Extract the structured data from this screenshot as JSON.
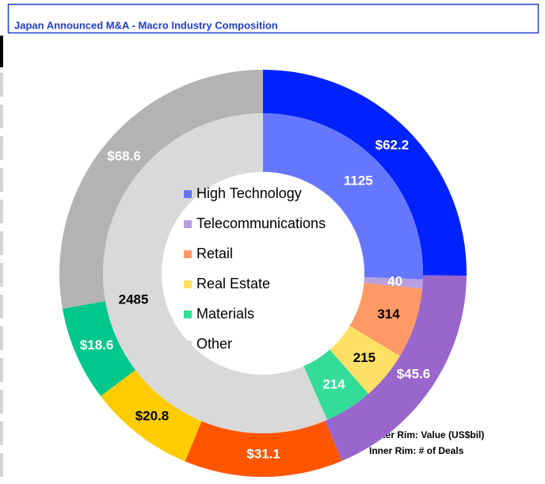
{
  "chart_data": {
    "type": "donut",
    "title": "Japan Announced M&A - Macro Industry Composition",
    "categories": [
      "High Technology",
      "Telecommunications",
      "Retail",
      "Real Estate",
      "Materials",
      "Other"
    ],
    "series": [
      {
        "values": [
          62.2,
          45.6,
          31.1,
          20.8,
          18.6,
          68.6
        ],
        "value_labels": [
          "$62.2",
          "$45.6",
          "$31.1",
          "$20.8",
          "$18.6",
          "$68.6"
        ],
        "colors": [
          "#0022ff",
          "#9966cc",
          "#ff5500",
          "#ffcc00",
          "#00c78c",
          "#b3b3b3"
        ],
        "label_colors": [
          "#ffffff",
          "#ffffff",
          "#ffffff",
          "#000000",
          "#ffffff",
          "#ffffff"
        ]
      },
      {
        "values": [
          1125,
          40,
          314,
          215,
          214,
          2485
        ],
        "colors": [
          "#6677ff",
          "#b8a0e0",
          "#ff9966",
          "#ffe066",
          "#33dd99",
          "#d9d9d9"
        ],
        "label_colors": [
          "#ffffff",
          "#ffffff",
          "#000000",
          "#000000",
          "#ffffff",
          "#000000"
        ]
      }
    ],
    "annotations": [
      "Outer Rim: Value (US$bil)",
      "Inner Rim: # of Deals"
    ]
  }
}
